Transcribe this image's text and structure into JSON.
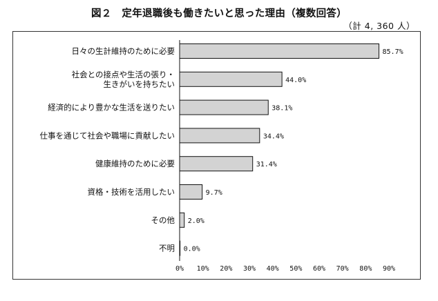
{
  "title": "図２　定年退職後も働きたいと思った理由（複数回答）",
  "total_label": "（計 4, 360 人）",
  "colors": {
    "bar_fill": "#d3d3d3",
    "bar_stroke": "#111111",
    "axis": "#111111"
  },
  "chart_data": {
    "type": "bar",
    "orientation": "horizontal",
    "title": "図２　定年退職後も働きたいと思った理由（複数回答）",
    "categories": [
      [
        "日々の生計維持のために必要"
      ],
      [
        "社会との接点や生活の張り・",
        "生きがいを持ちたい"
      ],
      [
        "経済的により豊かな生活を送りたい"
      ],
      [
        "仕事を通じて社会や職場に貢献したい"
      ],
      [
        "健康維持のために必要"
      ],
      [
        "資格・技術を活用したい"
      ],
      [
        "その他"
      ],
      [
        "不明"
      ]
    ],
    "values": [
      85.7,
      44.0,
      38.1,
      34.4,
      31.4,
      9.7,
      2.0,
      0.0
    ],
    "value_labels": [
      "85.7%",
      "44.0%",
      "38.1%",
      "34.4%",
      "31.4%",
      "9.7%",
      "2.0%",
      "0.0%"
    ],
    "xlim": [
      0,
      90
    ],
    "xticks": [
      0,
      10,
      20,
      30,
      40,
      50,
      60,
      70,
      80,
      90
    ],
    "xtick_labels": [
      "0%",
      "10%",
      "20%",
      "30%",
      "40%",
      "50%",
      "60%",
      "70%",
      "80%",
      "90%"
    ],
    "grid": false,
    "legend": "none"
  }
}
